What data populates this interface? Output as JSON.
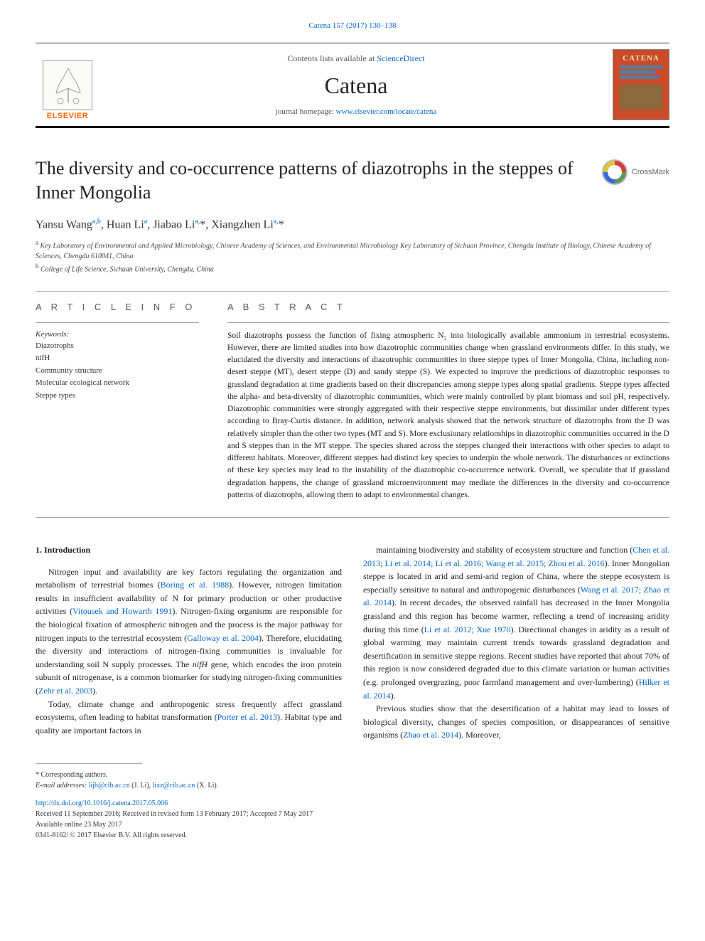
{
  "journal_ref": "Catena 157 (2017) 130–138",
  "header": {
    "contents_prefix": "Contents lists available at ",
    "contents_link": "ScienceDirect",
    "journal_name": "Catena",
    "homepage_prefix": "journal homepage: ",
    "homepage_link": "www.elsevier.com/locate/catena",
    "publisher_label": "ELSEVIER",
    "cover_label": "CATENA"
  },
  "crossmark_label": "CrossMark",
  "title": "The diversity and co-occurrence patterns of diazotrophs in the steppes of Inner Mongolia",
  "authors_html": "Yansu Wang<sup>a,b</sup>, Huan Li<sup>a</sup>, Jiabao Li<sup>a,</sup>*, Xiangzhen Li<sup>a,</sup>*",
  "affiliations": {
    "a": "Key Laboratory of Environmental and Applied Microbiology, Chinese Academy of Sciences, and Environmental Microbiology Key Laboratory of Sichuan Province, Chengdu Institute of Biology, Chinese Academy of Sciences, Chengdu 610041, China",
    "b": "College of Life Science, Sichuan University, Chengdu, China"
  },
  "article_info_heading": "A R T I C L E  I N F O",
  "keywords_label": "Keywords:",
  "keywords": [
    "Diazotrophs",
    "nifH",
    "Community structure",
    "Molecular ecological network",
    "Steppe types"
  ],
  "abstract_heading": "A B S T R A C T",
  "abstract": "Soil diazotrophs possess the function of fixing atmospheric N₂ into biologically available ammonium in terrestrial ecosystems. However, there are limited studies into how diazotrophic communities change when grassland environments differ. In this study, we elucidated the diversity and interactions of diazotrophic communities in three steppe types of Inner Mongolia, China, including non-desert steppe (MT), desert steppe (D) and sandy steppe (S). We expected to improve the predictions of diazotrophic responses to grassland degradation at time gradients based on their discrepancies among steppe types along spatial gradients. Steppe types affected the alpha- and beta-diversity of diazotrophic communities, which were mainly controlled by plant biomass and soil pH, respectively. Diazotrophic communities were strongly aggregated with their respective steppe environments, but dissimilar under different types according to Bray-Curtis distance. In addition, network analysis showed that the network structure of diazotrophs from the D was relatively simpler than the other two types (MT and S). More exclusionary relationships in diazotrophic communities occurred in the D and S steppes than in the MT steppe. The species shared across the steppes changed their interactions with other species to adapt to different habitats. Moreover, different steppes had distinct key species to underpin the whole network. The disturbances or extinctions of these key species may lead to the instability of the diazotrophic co-occurrence network. Overall, we speculate that if grassland degradation happens, the change of grassland microenvironment may mediate the differences in the diversity and co-occurrence patterns of diazotrophs, allowing them to adapt to environmental changes.",
  "intro_heading": "1. Introduction",
  "intro_col1": [
    "Nitrogen input and availability are key factors regulating the organization and metabolism of terrestrial biomes (<span class=\"ref\">Boring et al. 1988</span>). However, nitrogen limitation results in insufficient availability of N for primary production or other productive activities (<span class=\"ref\">Vitousek and Howarth 1991</span>). Nitrogen-fixing organisms are responsible for the biological fixation of atmospheric nitrogen and the process is the major pathway for nitrogen inputs to the terrestrial ecosystem (<span class=\"ref\">Galloway et al. 2004</span>). Therefore, elucidating the diversity and interactions of nitrogen-fixing communities is invaluable for understanding soil N supply processes. The <span class=\"ital\">nifH</span> gene, which encodes the iron protein subunit of nitrogenase, is a common biomarker for studying nitrogen-fixing communities (<span class=\"ref\">Zehr et al. 2003</span>).",
    "Today, climate change and anthropogenic stress frequently affect grassland ecosystems, often leading to habitat transformation (<span class=\"ref\">Porter et al. 2013</span>). Habitat type and quality are important factors in"
  ],
  "intro_col2": [
    "maintaining biodiversity and stability of ecosystem structure and function (<span class=\"ref\">Chen et al. 2013; Li et al. 2014; Li et al. 2016; Wang et al. 2015; Zhou et al. 2016</span>). Inner Mongolian steppe is located in arid and semi-arid region of China, where the steppe ecosystem is especially sensitive to natural and anthropogenic disturbances (<span class=\"ref\">Wang et al. 2017; Zhao et al. 2014</span>). In recent decades, the observed rainfall has decreased in the Inner Mongolia grassland and this region has become warmer, reflecting a trend of increasing aridity during this time (<span class=\"ref\">Li et al. 2012; Xue 1970</span>). Directional changes in aridity as a result of global warming may maintain current trends towards grassland degradation and desertification in sensitive steppe regions. Recent studies have reported that about 70% of this region is now considered degraded due to this climate variation or human activities (e.g. prolonged overgrazing, poor farmland management and over-lumbering) (<span class=\"ref\">Hilker et al. 2014</span>).",
    "Previous studies show that the desertification of a habitat may lead to losses of biological diversity, changes of species composition, or disappearances of sensitive organisms (<span class=\"ref\">Zhao et al. 2014</span>). Moreover,"
  ],
  "footer": {
    "corresponding": "* Corresponding authors.",
    "email_label": "E-mail addresses:",
    "email1": "lijb@cib.ac.cn",
    "email1_name": "(J. Li),",
    "email2": "lixz@cib.ac.cn",
    "email2_name": "(X. Li).",
    "doi": "http://dx.doi.org/10.1016/j.catena.2017.05.006",
    "received": "Received 11 September 2016; Received in revised form 13 February 2017; Accepted 7 May 2017",
    "available": "Available online 23 May 2017",
    "copyright": "0341-8162/ © 2017 Elsevier B.V. All rights reserved."
  },
  "colors": {
    "link": "#0066cc",
    "elsevier_orange": "#ff6600",
    "cover_bg": "#c94b2a",
    "cover_title": "#f5e6b0"
  }
}
